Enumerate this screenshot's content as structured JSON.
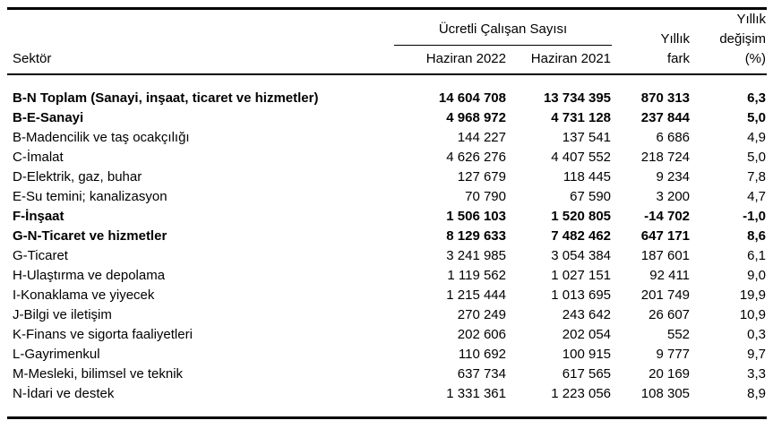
{
  "table": {
    "sector_header": "Sektör",
    "group_header": "Ücretli Çalışan Sayısı",
    "col_headers": [
      "Haziran 2022",
      "Haziran 2021"
    ],
    "yillik_fark_header": "Yıllık\nfark",
    "yillik_degisim_header": "Yıllık\ndeğişim\n(%)",
    "rows": [
      {
        "sector": "B-N Toplam (Sanayi, inşaat, ticaret ve hizmetler)",
        "haziran_2022": "14 604 708",
        "haziran_2021": "13 734 395",
        "yillik_fark": "870 313",
        "yillik_degisim": "6,3",
        "bold": true
      },
      {
        "sector": "B-E-Sanayi",
        "haziran_2022": "4 968 972",
        "haziran_2021": "4 731 128",
        "yillik_fark": "237 844",
        "yillik_degisim": "5,0",
        "bold": true
      },
      {
        "sector": "B-Madencilik ve taş ocakçılığı",
        "haziran_2022": "144 227",
        "haziran_2021": "137 541",
        "yillik_fark": "6 686",
        "yillik_degisim": "4,9",
        "bold": false
      },
      {
        "sector": "C-İmalat",
        "haziran_2022": "4 626 276",
        "haziran_2021": "4 407 552",
        "yillik_fark": "218 724",
        "yillik_degisim": "5,0",
        "bold": false
      },
      {
        "sector": "D-Elektrik, gaz, buhar",
        "haziran_2022": "127 679",
        "haziran_2021": "118 445",
        "yillik_fark": "9 234",
        "yillik_degisim": "7,8",
        "bold": false
      },
      {
        "sector": "E-Su temini; kanalizasyon",
        "haziran_2022": "70 790",
        "haziran_2021": "67 590",
        "yillik_fark": "3 200",
        "yillik_degisim": "4,7",
        "bold": false
      },
      {
        "sector": "F-İnşaat",
        "haziran_2022": "1 506 103",
        "haziran_2021": "1 520 805",
        "yillik_fark": "-14 702",
        "yillik_degisim": "-1,0",
        "bold": true
      },
      {
        "sector": "G-N-Ticaret ve hizmetler",
        "haziran_2022": "8 129 633",
        "haziran_2021": "7 482 462",
        "yillik_fark": "647 171",
        "yillik_degisim": "8,6",
        "bold": true
      },
      {
        "sector": "G-Ticaret",
        "haziran_2022": "3 241 985",
        "haziran_2021": "3 054 384",
        "yillik_fark": "187 601",
        "yillik_degisim": "6,1",
        "bold": false
      },
      {
        "sector": "H-Ulaştırma ve depolama",
        "haziran_2022": "1 119 562",
        "haziran_2021": "1 027 151",
        "yillik_fark": "92 411",
        "yillik_degisim": "9,0",
        "bold": false
      },
      {
        "sector": "I-Konaklama ve yiyecek",
        "haziran_2022": "1 215 444",
        "haziran_2021": "1 013 695",
        "yillik_fark": "201 749",
        "yillik_degisim": "19,9",
        "bold": false
      },
      {
        "sector": "J-Bilgi ve iletişim",
        "haziran_2022": "270 249",
        "haziran_2021": "243 642",
        "yillik_fark": "26 607",
        "yillik_degisim": "10,9",
        "bold": false
      },
      {
        "sector": "K-Finans ve sigorta faaliyetleri",
        "haziran_2022": "202 606",
        "haziran_2021": "202 054",
        "yillik_fark": "552",
        "yillik_degisim": "0,3",
        "bold": false
      },
      {
        "sector": "L-Gayrimenkul",
        "haziran_2022": "110 692",
        "haziran_2021": "100 915",
        "yillik_fark": "9 777",
        "yillik_degisim": "9,7",
        "bold": false
      },
      {
        "sector": "M-Mesleki, bilimsel ve teknik",
        "haziran_2022": "637 734",
        "haziran_2021": "617 565",
        "yillik_fark": "20 169",
        "yillik_degisim": "3,3",
        "bold": false
      },
      {
        "sector": "N-İdari ve destek",
        "haziran_2022": "1 331 361",
        "haziran_2021": "1 223 056",
        "yillik_fark": "108 305",
        "yillik_degisim": "8,9",
        "bold": false
      }
    ]
  }
}
